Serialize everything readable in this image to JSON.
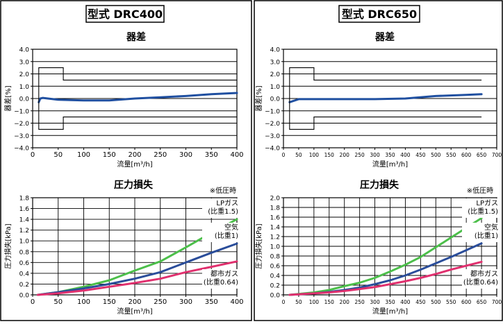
{
  "panels": [
    {
      "title": "型式 DRC400",
      "error_chart": {
        "title": "器差",
        "ylabel": "器差[%]",
        "xlabel": "流量[m³/h]",
        "x_ticks": [
          "0",
          "50",
          "100",
          "150",
          "200",
          "250",
          "300",
          "350",
          "400"
        ],
        "y_ticks": [
          "4.0",
          "3.0",
          "2.0",
          "1.0",
          "0.0",
          "−1.0",
          "−2.0",
          "−3.0",
          "−4.0"
        ]
      },
      "loss_chart": {
        "title": "圧力損失",
        "note": "※低圧時",
        "ylabel": "圧力損失[kPa]",
        "xlabel": "流量[m³/h]",
        "x_ticks": [
          "0",
          "50",
          "100",
          "150",
          "200",
          "250",
          "300",
          "350",
          "400"
        ],
        "y_ticks": [
          "1.8",
          "1.6",
          "1.4",
          "1.2",
          "1.0",
          "0.8",
          "0.6",
          "0.4",
          "0.2",
          "0.0"
        ],
        "series_labels": [
          {
            "name": "LPガス",
            "sub": "(比重1.5)"
          },
          {
            "name": "空気",
            "sub": "(比重1)"
          },
          {
            "name": "都市ガス",
            "sub": "(比重0.64)"
          }
        ]
      }
    },
    {
      "title": "型式 DRC650",
      "error_chart": {
        "title": "器差",
        "ylabel": "器差[%]",
        "xlabel": "流量[m³/h]",
        "x_ticks": [
          "0",
          "50",
          "100",
          "150",
          "200",
          "250",
          "300",
          "350",
          "400",
          "450",
          "500",
          "550",
          "600",
          "650",
          "700"
        ],
        "y_ticks": [
          "4.0",
          "3.0",
          "2.0",
          "1.0",
          "0.0",
          "−1.0",
          "−2.0",
          "−3.0",
          "−4.0"
        ]
      },
      "loss_chart": {
        "title": "圧力損失",
        "note": "※低圧時",
        "ylabel": "圧力損失[kPa]",
        "xlabel": "流量[m³/h]",
        "x_ticks": [
          "0",
          "50",
          "100",
          "150",
          "200",
          "250",
          "300",
          "350",
          "400",
          "450",
          "500",
          "550",
          "600",
          "650",
          "700"
        ],
        "y_ticks": [
          "2.0",
          "1.8",
          "1.6",
          "1.4",
          "1.2",
          "1.0",
          "0.8",
          "0.6",
          "0.4",
          "0.2",
          "0.0"
        ],
        "series_labels": [
          {
            "name": "LPガス",
            "sub": "(比重1.5)"
          },
          {
            "name": "空気",
            "sub": "(比重1)"
          },
          {
            "name": "都市ガス",
            "sub": "(比重0.64)"
          }
        ]
      }
    }
  ],
  "colors": {
    "lp": "#4cbf4a",
    "air": "#2a4d9a",
    "city": "#e0306e",
    "error": "#1f4fa0",
    "frame": "#000000",
    "grid": "#000000"
  },
  "chart_data": [
    {
      "type": "line",
      "title": "器差",
      "panel": "型式 DRC400",
      "xlabel": "流量[m³/h]",
      "ylabel": "器差[%]",
      "xlim": [
        0,
        400
      ],
      "ylim": [
        -4.0,
        4.0
      ],
      "grid": true,
      "series": [
        {
          "key": "error",
          "x": [
            12,
            15,
            20,
            30,
            50,
            100,
            150,
            200,
            250,
            300,
            350,
            400
          ],
          "y": [
            -0.3,
            0.0,
            0.05,
            0.0,
            -0.1,
            -0.15,
            -0.15,
            0.0,
            0.1,
            0.2,
            0.35,
            0.45
          ]
        },
        {
          "key": "limit_upper",
          "x": [
            12,
            12,
            60,
            60,
            400
          ],
          "y": [
            0.0,
            2.5,
            2.5,
            1.5,
            1.5
          ]
        },
        {
          "key": "limit_lower",
          "x": [
            12,
            12,
            60,
            60,
            400
          ],
          "y": [
            0.0,
            -2.5,
            -2.5,
            -1.5,
            -1.5
          ]
        }
      ]
    },
    {
      "type": "line",
      "title": "圧力損失",
      "panel": "型式 DRC400",
      "xlabel": "流量[m³/h]",
      "ylabel": "圧力損失[kPa]",
      "xlim": [
        0,
        400
      ],
      "ylim": [
        0,
        1.8
      ],
      "grid": true,
      "series": [
        {
          "name": "LPガス",
          "key": "lp",
          "x": [
            10,
            50,
            100,
            150,
            200,
            250,
            300,
            350,
            400
          ],
          "y": [
            0.0,
            0.05,
            0.15,
            0.27,
            0.45,
            0.62,
            0.88,
            1.15,
            1.4
          ]
        },
        {
          "name": "空気",
          "key": "air",
          "x": [
            10,
            50,
            100,
            150,
            200,
            250,
            300,
            350,
            400
          ],
          "y": [
            0.0,
            0.05,
            0.12,
            0.2,
            0.3,
            0.42,
            0.6,
            0.78,
            0.95
          ]
        },
        {
          "name": "都市ガス",
          "key": "city",
          "x": [
            10,
            50,
            100,
            150,
            200,
            250,
            300,
            350,
            400
          ],
          "y": [
            0.0,
            0.03,
            0.08,
            0.15,
            0.22,
            0.3,
            0.42,
            0.52,
            0.62
          ]
        }
      ]
    },
    {
      "type": "line",
      "title": "器差",
      "panel": "型式 DRC650",
      "xlabel": "流量[m³/h]",
      "ylabel": "器差[%]",
      "xlim": [
        0,
        700
      ],
      "ylim": [
        -4.0,
        4.0
      ],
      "grid": true,
      "series": [
        {
          "key": "error",
          "x": [
            20,
            50,
            100,
            200,
            300,
            400,
            500,
            600,
            650
          ],
          "y": [
            -0.3,
            -0.05,
            -0.05,
            -0.05,
            -0.05,
            0.0,
            0.2,
            0.3,
            0.35
          ]
        },
        {
          "key": "limit_upper",
          "x": [
            20,
            20,
            100,
            100,
            650
          ],
          "y": [
            0.0,
            2.5,
            2.5,
            1.5,
            1.5
          ]
        },
        {
          "key": "limit_lower",
          "x": [
            20,
            20,
            100,
            100,
            650
          ],
          "y": [
            0.0,
            -2.5,
            -2.5,
            -1.5,
            -1.5
          ]
        }
      ]
    },
    {
      "type": "line",
      "title": "圧力損失",
      "panel": "型式 DRC650",
      "xlabel": "流量[m³/h]",
      "ylabel": "圧力損失[kPa]",
      "xlim": [
        0,
        700
      ],
      "ylim": [
        0,
        2.0
      ],
      "grid": true,
      "series": [
        {
          "name": "LPガス",
          "key": "lp",
          "x": [
            20,
            100,
            150,
            200,
            250,
            300,
            350,
            400,
            450,
            500,
            550,
            600,
            650
          ],
          "y": [
            0.0,
            0.05,
            0.1,
            0.18,
            0.25,
            0.35,
            0.48,
            0.62,
            0.78,
            0.98,
            1.18,
            1.38,
            1.58
          ]
        },
        {
          "name": "空気",
          "key": "air",
          "x": [
            20,
            100,
            150,
            200,
            250,
            300,
            350,
            400,
            450,
            500,
            550,
            600,
            650
          ],
          "y": [
            0.0,
            0.03,
            0.06,
            0.1,
            0.15,
            0.22,
            0.3,
            0.4,
            0.52,
            0.65,
            0.78,
            0.92,
            1.06
          ]
        },
        {
          "name": "都市ガス",
          "key": "city",
          "x": [
            20,
            100,
            150,
            200,
            250,
            300,
            350,
            400,
            450,
            500,
            550,
            600,
            650
          ],
          "y": [
            0.0,
            0.03,
            0.05,
            0.08,
            0.12,
            0.16,
            0.22,
            0.28,
            0.35,
            0.43,
            0.52,
            0.6,
            0.68
          ]
        }
      ]
    }
  ]
}
